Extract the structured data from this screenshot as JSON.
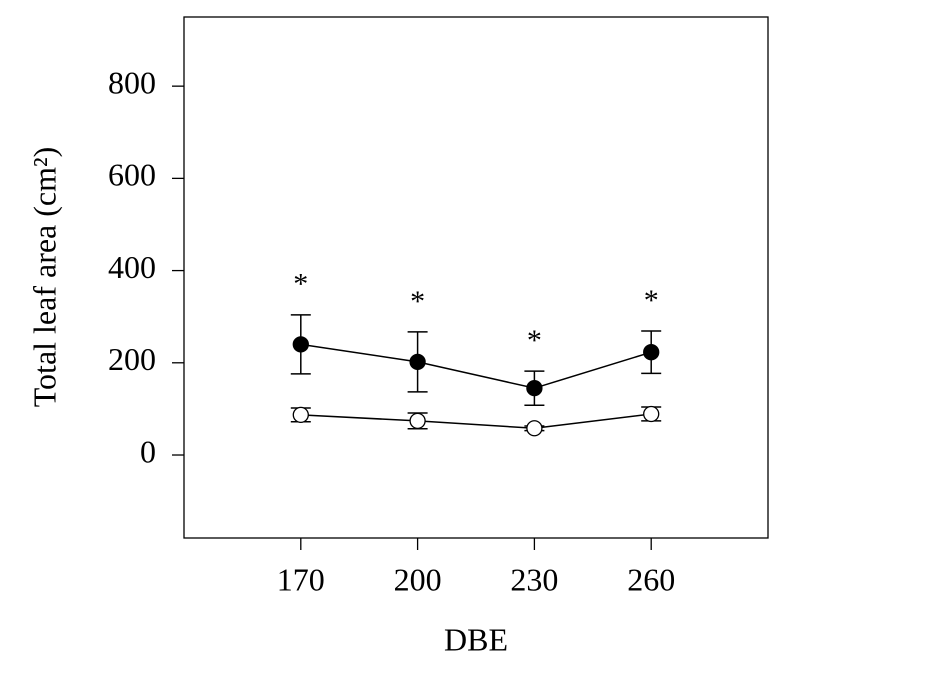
{
  "chart_data": {
    "type": "line",
    "x_label": "DBE",
    "y_label": "Total leaf area (cm²)",
    "xlim": [
      140,
      290
    ],
    "xticks": [
      170,
      200,
      230,
      260
    ],
    "ylim": [
      -180,
      950
    ],
    "yticks": [
      0,
      200,
      400,
      600,
      800
    ],
    "x": [
      170,
      200,
      230,
      260
    ],
    "series": [
      {
        "color": "#000000",
        "marker_fill": "#000000",
        "values": [
          240,
          202,
          145,
          223
        ],
        "errors": [
          64,
          65,
          37,
          46
        ],
        "annotations": [
          "*",
          "*",
          "*",
          "*"
        ]
      },
      {
        "color": "#000000",
        "marker_fill": "#ffffff",
        "values": [
          87,
          74,
          58,
          89
        ],
        "errors": [
          15,
          17,
          5,
          15
        ]
      }
    ]
  }
}
